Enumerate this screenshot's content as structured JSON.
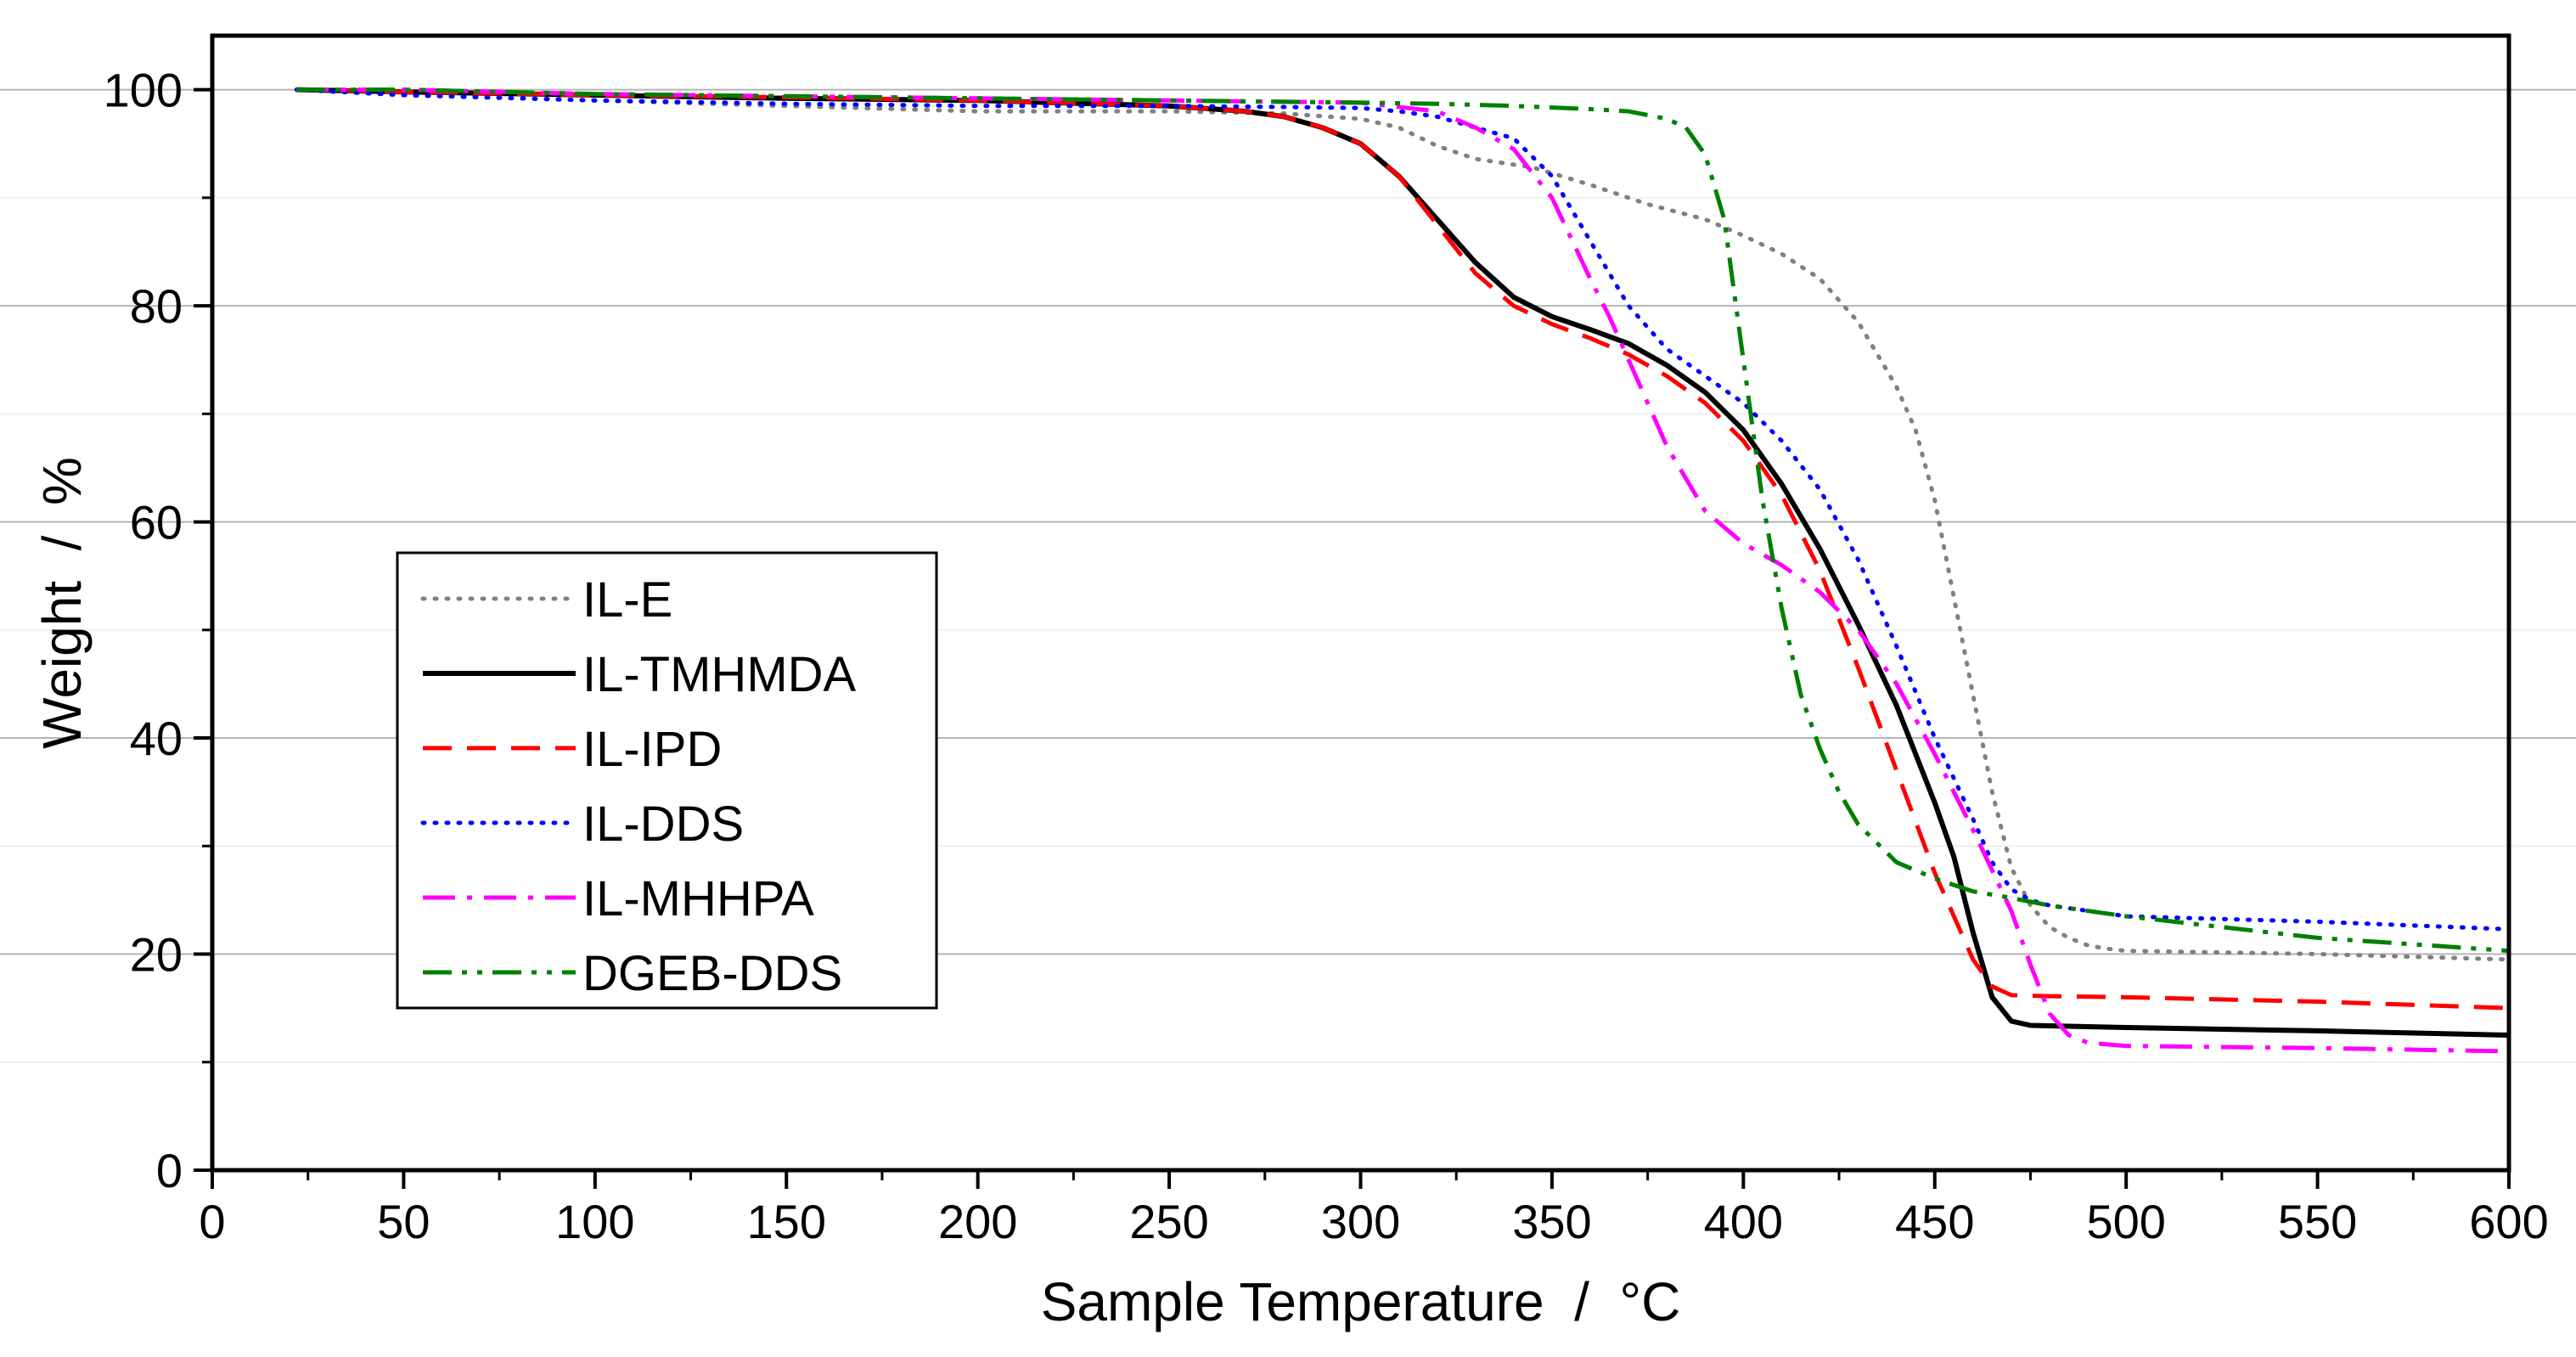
{
  "chart_data": {
    "type": "line",
    "title": "",
    "xlabel": "Sample Temperature  /  °C",
    "ylabel": "Weight  /  %",
    "xlim": [
      0,
      600
    ],
    "ylim": [
      0,
      105
    ],
    "xticks": [
      0,
      50,
      100,
      150,
      200,
      250,
      300,
      350,
      400,
      450,
      500,
      550,
      600
    ],
    "yticks": [
      0,
      20,
      40,
      60,
      80,
      100
    ],
    "grid": true,
    "legend_position": "center-left",
    "series": [
      {
        "name": "IL-E",
        "color": "#808080",
        "dash": "dot",
        "x": [
          22,
          50,
          100,
          150,
          200,
          250,
          280,
          300,
          310,
          320,
          330,
          345,
          360,
          375,
          390,
          400,
          410,
          420,
          430,
          440,
          445,
          450,
          455,
          460,
          465,
          470,
          475,
          480,
          485,
          490,
          495,
          500,
          550,
          600
        ],
        "y": [
          100,
          99.5,
          99,
          98.5,
          98,
          98,
          97.8,
          97.3,
          96.5,
          94.8,
          93.6,
          92.8,
          91.2,
          89.4,
          88,
          86.5,
          84.8,
          82.5,
          78.5,
          72.5,
          68.5,
          62,
          53,
          44,
          35,
          28,
          24.5,
          22.5,
          21.5,
          20.8,
          20.5,
          20.3,
          20,
          19.5
        ]
      },
      {
        "name": "IL-TMHMDA",
        "color": "#000000",
        "dash": "solid",
        "x": [
          22,
          50,
          100,
          150,
          200,
          250,
          270,
          280,
          290,
          300,
          310,
          320,
          330,
          340,
          350,
          360,
          370,
          380,
          390,
          400,
          410,
          420,
          430,
          440,
          450,
          455,
          460,
          465,
          470,
          475,
          500,
          550,
          600
        ],
        "y": [
          100,
          99.8,
          99.5,
          99.2,
          99,
          98.5,
          98,
          97.5,
          96.5,
          95,
          92,
          88,
          84,
          80.8,
          79,
          77.8,
          76.5,
          74.5,
          72,
          68.5,
          63.5,
          57.5,
          50.5,
          43,
          34,
          29,
          22,
          16,
          13.8,
          13.4,
          13.2,
          12.9,
          12.5
        ]
      },
      {
        "name": "IL-IPD",
        "color": "#ff0000",
        "dash": "dash",
        "x": [
          22,
          50,
          100,
          150,
          200,
          250,
          270,
          280,
          290,
          300,
          310,
          320,
          330,
          340,
          350,
          360,
          370,
          380,
          390,
          400,
          410,
          420,
          430,
          440,
          450,
          460,
          465,
          470,
          480,
          500,
          550,
          600
        ],
        "y": [
          100,
          99.8,
          99.5,
          99.3,
          99,
          98.5,
          98,
          97.5,
          96.5,
          95,
          92,
          87.5,
          83,
          80,
          78.3,
          77,
          75.5,
          73.5,
          71,
          67.5,
          62.5,
          55.5,
          46.5,
          37,
          27.5,
          19.5,
          17,
          16.2,
          16.1,
          16,
          15.6,
          15
        ]
      },
      {
        "name": "IL-DDS",
        "color": "#0000ff",
        "dash": "dot",
        "x": [
          22,
          50,
          100,
          150,
          200,
          250,
          280,
          300,
          310,
          320,
          330,
          340,
          350,
          360,
          370,
          380,
          390,
          400,
          410,
          420,
          430,
          440,
          450,
          460,
          465,
          470,
          475,
          480,
          490,
          500,
          550,
          600
        ],
        "y": [
          100,
          99.5,
          99,
          98.7,
          98.5,
          98.5,
          98.4,
          98.3,
          98,
          97.5,
          96.5,
          95.5,
          92,
          86,
          80,
          76,
          73.5,
          71,
          67.5,
          63,
          56.5,
          48.5,
          40,
          32.5,
          28.5,
          26,
          25,
          24.5,
          24,
          23.5,
          23,
          22.3
        ]
      },
      {
        "name": "IL-MHHPA",
        "color": "#ff00ff",
        "dash": "dashdot",
        "x": [
          22,
          50,
          100,
          150,
          200,
          250,
          300,
          320,
          330,
          340,
          350,
          360,
          365,
          370,
          380,
          390,
          400,
          410,
          420,
          430,
          440,
          450,
          460,
          470,
          475,
          480,
          485,
          490,
          500,
          550,
          600
        ],
        "y": [
          100,
          100,
          99.6,
          99.4,
          99.2,
          99,
          98.8,
          98,
          96.5,
          94.5,
          90,
          82.5,
          79,
          75,
          67,
          61,
          58,
          56,
          53.5,
          50,
          45,
          38.5,
          31.5,
          24,
          19,
          14.5,
          12.5,
          11.8,
          11.5,
          11.3,
          11
        ]
      },
      {
        "name": "DGEB-DDS",
        "color": "#008000",
        "dash": "dashdotdot",
        "x": [
          22,
          50,
          100,
          150,
          200,
          250,
          300,
          320,
          340,
          360,
          370,
          380,
          385,
          390,
          395,
          400,
          405,
          410,
          415,
          420,
          425,
          430,
          440,
          450,
          460,
          470,
          480,
          500,
          550,
          600
        ],
        "y": [
          100,
          100,
          99.6,
          99.4,
          99.2,
          99,
          98.8,
          98.7,
          98.5,
          98.2,
          98,
          97.3,
          96.5,
          94,
          88,
          75,
          62,
          52,
          44,
          39,
          35,
          32,
          28.5,
          27,
          25.8,
          25.2,
          24.5,
          23.5,
          21.5,
          20.3
        ]
      }
    ]
  }
}
